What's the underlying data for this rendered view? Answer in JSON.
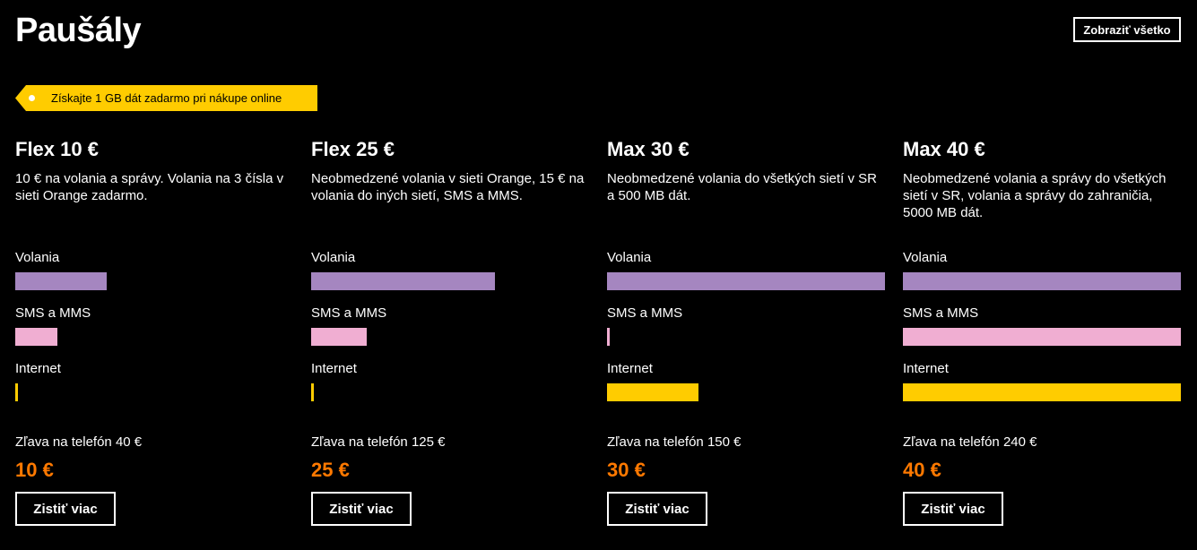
{
  "header": {
    "title": "Paušály",
    "show_all_label": "Zobraziť všetko"
  },
  "promo": {
    "text": "Získajte 1 GB dát zadarmo pri nákupe online"
  },
  "colors": {
    "calls_bar": "#a586c0",
    "sms_bar": "#f0aed2",
    "internet_bar": "#ffcc00",
    "price": "#ff7900",
    "promo_bg": "#ffcc00"
  },
  "metric_labels": {
    "calls": "Volania",
    "sms": "SMS a MMS",
    "internet": "Internet"
  },
  "plans": [
    {
      "name": "Flex 10 €",
      "description": "10 € na volania a správy. Volania na 3 čísla v sieti Orange zadarmo.",
      "calls_level": 0.33,
      "sms_level": 0.15,
      "internet_level": 0.01,
      "discount": "Zľava na telefón 40 €",
      "price": "10 €",
      "cta": "Zistiť viac"
    },
    {
      "name": "Flex 25 €",
      "description": "Neobmedzené volania v sieti Orange, 15 € na volania do iných sietí, SMS a MMS.",
      "calls_level": 0.66,
      "sms_level": 0.2,
      "internet_level": 0.01,
      "discount": "Zľava na telefón 125 €",
      "price": "25 €",
      "cta": "Zistiť viac"
    },
    {
      "name": "Max 30 €",
      "description": "Neobmedzené volania do všetkých sietí v SR a 500 MB dát.",
      "calls_level": 1.0,
      "sms_level": 0.01,
      "internet_level": 0.33,
      "discount": "Zľava na telefón 150 €",
      "price": "30 €",
      "cta": "Zistiť viac"
    },
    {
      "name": "Max 40 €",
      "description": "Neobmedzené volania a správy do všetkých sietí v SR, volania a správy do zahraničia, 5000 MB dát.",
      "calls_level": 1.0,
      "sms_level": 1.0,
      "internet_level": 1.0,
      "discount": "Zľava na telefón 240 €",
      "price": "40 €",
      "cta": "Zistiť viac"
    }
  ]
}
